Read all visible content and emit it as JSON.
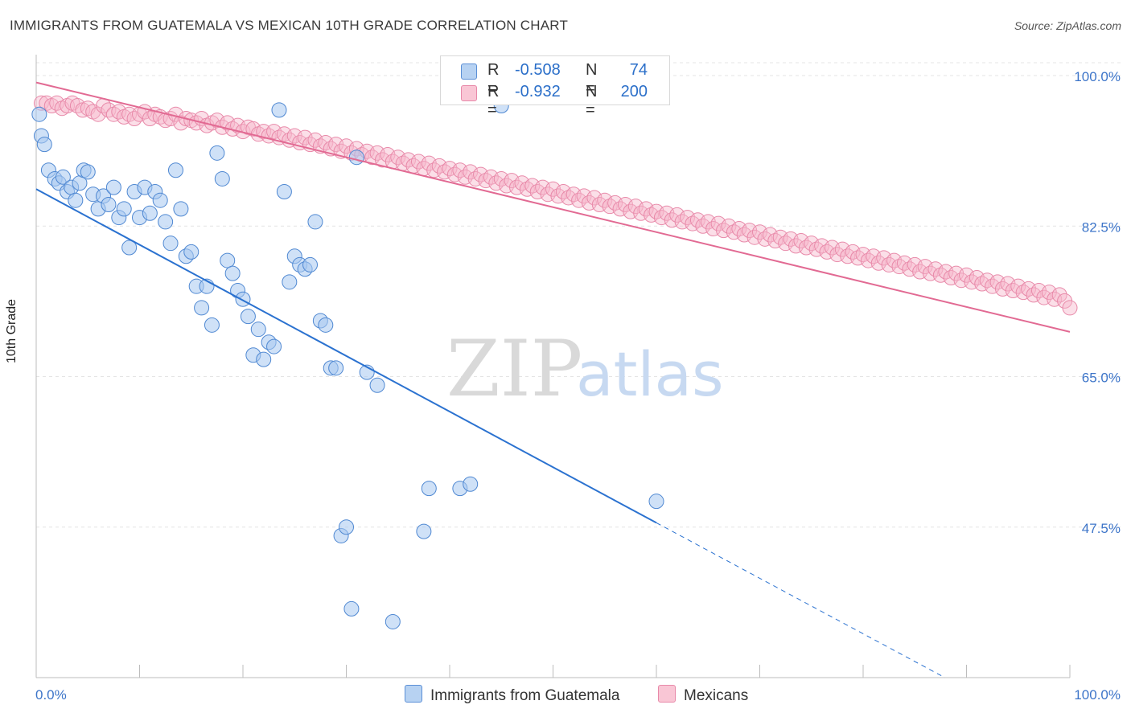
{
  "title": "IMMIGRANTS FROM GUATEMALA VS MEXICAN 10TH GRADE CORRELATION CHART",
  "source": "Source: ZipAtlas.com",
  "watermark": {
    "zip": "ZIP",
    "atlas": "atlas"
  },
  "colors": {
    "blue": "#2b72d0",
    "blue_fill": "#a8c8f0",
    "pink": "#e26a93",
    "pink_fill": "#f7b8cc",
    "axis_label": "#3d75c9",
    "grid": "#e2e2e2"
  },
  "legend_top": {
    "rows": [
      {
        "swatch": "blue",
        "r_label": "R =",
        "r_value": "-0.508",
        "n_label": "N =",
        "n_value": "74"
      },
      {
        "swatch": "pink",
        "r_label": "R =",
        "r_value": "-0.932",
        "n_label": "N =",
        "n_value": "200"
      }
    ]
  },
  "bottom_legend": [
    {
      "swatch": "blue",
      "label": "Immigrants from Guatemala"
    },
    {
      "swatch": "pink",
      "label": "Mexicans"
    }
  ],
  "chart_data": {
    "type": "scatter",
    "title": "IMMIGRANTS FROM GUATEMALA VS MEXICAN 10TH GRADE CORRELATION CHART",
    "xlabel": "",
    "ylabel": "10th Grade",
    "xlim": [
      0,
      100
    ],
    "ylim": [
      30,
      101.5
    ],
    "x_tick_labels": [
      "0.0%",
      "100.0%"
    ],
    "y_ticks": [
      100.0,
      82.5,
      65.0,
      47.5
    ],
    "y_tick_labels": [
      "100.0%",
      "82.5%",
      "65.0%",
      "47.5%"
    ],
    "grid": true,
    "legend_position": "top-center",
    "series": [
      {
        "name": "Immigrants from Guatemala",
        "color": "#2b72d0",
        "R": -0.508,
        "N": 74,
        "trend": {
          "x": [
            0,
            60
          ],
          "y": [
            86.8,
            48.0
          ],
          "dashed_to": [
            100,
            22.2
          ]
        },
        "points": [
          [
            0.3,
            95.5
          ],
          [
            0.5,
            93.0
          ],
          [
            0.8,
            92.0
          ],
          [
            1.2,
            89.0
          ],
          [
            1.8,
            88.0
          ],
          [
            2.2,
            87.5
          ],
          [
            2.6,
            88.2
          ],
          [
            3.0,
            86.5
          ],
          [
            3.4,
            87.0
          ],
          [
            3.8,
            85.5
          ],
          [
            4.2,
            87.5
          ],
          [
            4.6,
            89.0
          ],
          [
            5.0,
            88.8
          ],
          [
            5.5,
            86.2
          ],
          [
            6.0,
            84.5
          ],
          [
            6.5,
            86.0
          ],
          [
            7.0,
            85.0
          ],
          [
            7.5,
            87.0
          ],
          [
            8.0,
            83.5
          ],
          [
            8.5,
            84.5
          ],
          [
            9.0,
            80.0
          ],
          [
            9.5,
            86.5
          ],
          [
            10.0,
            83.5
          ],
          [
            10.5,
            87.0
          ],
          [
            11.0,
            84.0
          ],
          [
            11.5,
            86.5
          ],
          [
            12.0,
            85.5
          ],
          [
            12.5,
            83.0
          ],
          [
            13.0,
            80.5
          ],
          [
            13.5,
            89.0
          ],
          [
            14.0,
            84.5
          ],
          [
            14.5,
            79.0
          ],
          [
            15.0,
            79.5
          ],
          [
            15.5,
            75.5
          ],
          [
            16.0,
            73.0
          ],
          [
            16.5,
            75.5
          ],
          [
            17.0,
            71.0
          ],
          [
            17.5,
            91.0
          ],
          [
            18.0,
            88.0
          ],
          [
            18.5,
            78.5
          ],
          [
            19.0,
            77.0
          ],
          [
            19.5,
            75.0
          ],
          [
            20.0,
            74.0
          ],
          [
            20.5,
            72.0
          ],
          [
            21.0,
            67.5
          ],
          [
            21.5,
            70.5
          ],
          [
            22.0,
            67.0
          ],
          [
            22.5,
            69.0
          ],
          [
            23.0,
            68.5
          ],
          [
            23.5,
            96.0
          ],
          [
            24.0,
            86.5
          ],
          [
            24.5,
            76.0
          ],
          [
            25.0,
            79.0
          ],
          [
            25.5,
            78.0
          ],
          [
            26.0,
            77.5
          ],
          [
            26.5,
            78.0
          ],
          [
            27.0,
            83.0
          ],
          [
            27.5,
            71.5
          ],
          [
            28.0,
            71.0
          ],
          [
            28.5,
            66.0
          ],
          [
            29.0,
            66.0
          ],
          [
            29.5,
            46.5
          ],
          [
            30.0,
            47.5
          ],
          [
            30.5,
            38.0
          ],
          [
            31.0,
            90.5
          ],
          [
            32.0,
            65.5
          ],
          [
            33.0,
            64.0
          ],
          [
            34.5,
            36.5
          ],
          [
            37.5,
            47.0
          ],
          [
            38.0,
            52.0
          ],
          [
            41.0,
            52.0
          ],
          [
            42.0,
            52.5
          ],
          [
            45.0,
            96.5
          ],
          [
            60.0,
            50.5
          ]
        ]
      },
      {
        "name": "Mexicans",
        "color": "#e26a93",
        "R": -0.932,
        "N": 200,
        "trend": {
          "x": [
            0,
            100
          ],
          "y": [
            99.2,
            70.2
          ]
        },
        "points": [
          [
            0.5,
            96.8
          ],
          [
            1.0,
            96.8
          ],
          [
            1.5,
            96.5
          ],
          [
            2.0,
            96.8
          ],
          [
            2.5,
            96.2
          ],
          [
            3.0,
            96.5
          ],
          [
            3.5,
            96.8
          ],
          [
            4.0,
            96.5
          ],
          [
            4.5,
            96.0
          ],
          [
            5.0,
            96.2
          ],
          [
            5.5,
            95.8
          ],
          [
            6.0,
            95.5
          ],
          [
            6.5,
            96.5
          ],
          [
            7.0,
            96.0
          ],
          [
            7.5,
            95.5
          ],
          [
            8.0,
            95.8
          ],
          [
            8.5,
            95.2
          ],
          [
            9.0,
            95.5
          ],
          [
            9.5,
            95.0
          ],
          [
            10.0,
            95.5
          ],
          [
            10.5,
            95.8
          ],
          [
            11.0,
            95.0
          ],
          [
            11.5,
            95.5
          ],
          [
            12.0,
            95.2
          ],
          [
            12.5,
            94.8
          ],
          [
            13.0,
            95.0
          ],
          [
            13.5,
            95.5
          ],
          [
            14.0,
            94.5
          ],
          [
            14.5,
            95.0
          ],
          [
            15.0,
            94.8
          ],
          [
            15.5,
            94.5
          ],
          [
            16.0,
            95.0
          ],
          [
            16.5,
            94.2
          ],
          [
            17.0,
            94.5
          ],
          [
            17.5,
            94.8
          ],
          [
            18.0,
            94.0
          ],
          [
            18.5,
            94.5
          ],
          [
            19.0,
            93.8
          ],
          [
            19.5,
            94.2
          ],
          [
            20.0,
            93.5
          ],
          [
            20.5,
            94.0
          ],
          [
            21.0,
            93.8
          ],
          [
            21.5,
            93.2
          ],
          [
            22.0,
            93.5
          ],
          [
            22.5,
            93.0
          ],
          [
            23.0,
            93.5
          ],
          [
            23.5,
            92.8
          ],
          [
            24.0,
            93.2
          ],
          [
            24.5,
            92.5
          ],
          [
            25.0,
            93.0
          ],
          [
            25.5,
            92.2
          ],
          [
            26.0,
            92.8
          ],
          [
            26.5,
            92.0
          ],
          [
            27.0,
            92.5
          ],
          [
            27.5,
            91.8
          ],
          [
            28.0,
            92.2
          ],
          [
            28.5,
            91.5
          ],
          [
            29.0,
            92.0
          ],
          [
            29.5,
            91.2
          ],
          [
            30.0,
            91.8
          ],
          [
            30.5,
            91.0
          ],
          [
            31.0,
            91.5
          ],
          [
            31.5,
            90.8
          ],
          [
            32.0,
            91.2
          ],
          [
            32.5,
            90.5
          ],
          [
            33.0,
            91.0
          ],
          [
            33.5,
            90.2
          ],
          [
            34.0,
            90.8
          ],
          [
            34.5,
            90.0
          ],
          [
            35.0,
            90.5
          ],
          [
            35.5,
            89.8
          ],
          [
            36.0,
            90.2
          ],
          [
            36.5,
            89.5
          ],
          [
            37.0,
            90.0
          ],
          [
            37.5,
            89.2
          ],
          [
            38.0,
            89.8
          ],
          [
            38.5,
            89.0
          ],
          [
            39.0,
            89.5
          ],
          [
            39.5,
            88.8
          ],
          [
            40.0,
            89.2
          ],
          [
            40.5,
            88.5
          ],
          [
            41.0,
            89.0
          ],
          [
            41.5,
            88.2
          ],
          [
            42.0,
            88.8
          ],
          [
            42.5,
            88.0
          ],
          [
            43.0,
            88.5
          ],
          [
            43.5,
            87.8
          ],
          [
            44.0,
            88.2
          ],
          [
            44.5,
            87.5
          ],
          [
            45.0,
            88.0
          ],
          [
            45.5,
            87.2
          ],
          [
            46.0,
            87.8
          ],
          [
            46.5,
            87.0
          ],
          [
            47.0,
            87.5
          ],
          [
            47.5,
            86.8
          ],
          [
            48.0,
            87.2
          ],
          [
            48.5,
            86.5
          ],
          [
            49.0,
            87.0
          ],
          [
            49.5,
            86.2
          ],
          [
            50.0,
            86.8
          ],
          [
            50.5,
            86.0
          ],
          [
            51.0,
            86.5
          ],
          [
            51.5,
            85.8
          ],
          [
            52.0,
            86.2
          ],
          [
            52.5,
            85.5
          ],
          [
            53.0,
            86.0
          ],
          [
            53.5,
            85.2
          ],
          [
            54.0,
            85.8
          ],
          [
            54.5,
            85.0
          ],
          [
            55.0,
            85.5
          ],
          [
            55.5,
            84.8
          ],
          [
            56.0,
            85.2
          ],
          [
            56.5,
            84.5
          ],
          [
            57.0,
            85.0
          ],
          [
            57.5,
            84.2
          ],
          [
            58.0,
            84.8
          ],
          [
            58.5,
            84.0
          ],
          [
            59.0,
            84.5
          ],
          [
            59.5,
            83.8
          ],
          [
            60.0,
            84.2
          ],
          [
            60.5,
            83.5
          ],
          [
            61.0,
            84.0
          ],
          [
            61.5,
            83.2
          ],
          [
            62.0,
            83.8
          ],
          [
            62.5,
            83.0
          ],
          [
            63.0,
            83.5
          ],
          [
            63.5,
            82.8
          ],
          [
            64.0,
            83.2
          ],
          [
            64.5,
            82.5
          ],
          [
            65.0,
            83.0
          ],
          [
            65.5,
            82.2
          ],
          [
            66.0,
            82.8
          ],
          [
            66.5,
            82.0
          ],
          [
            67.0,
            82.5
          ],
          [
            67.5,
            81.8
          ],
          [
            68.0,
            82.2
          ],
          [
            68.5,
            81.5
          ],
          [
            69.0,
            82.0
          ],
          [
            69.5,
            81.2
          ],
          [
            70.0,
            81.8
          ],
          [
            70.5,
            81.0
          ],
          [
            71.0,
            81.5
          ],
          [
            71.5,
            80.8
          ],
          [
            72.0,
            81.2
          ],
          [
            72.5,
            80.5
          ],
          [
            73.0,
            81.0
          ],
          [
            73.5,
            80.2
          ],
          [
            74.0,
            80.8
          ],
          [
            74.5,
            80.0
          ],
          [
            75.0,
            80.5
          ],
          [
            75.5,
            79.8
          ],
          [
            76.0,
            80.2
          ],
          [
            76.5,
            79.5
          ],
          [
            77.0,
            80.0
          ],
          [
            77.5,
            79.2
          ],
          [
            78.0,
            79.8
          ],
          [
            78.5,
            79.0
          ],
          [
            79.0,
            79.5
          ],
          [
            79.5,
            78.8
          ],
          [
            80.0,
            79.2
          ],
          [
            80.5,
            78.5
          ],
          [
            81.0,
            79.0
          ],
          [
            81.5,
            78.2
          ],
          [
            82.0,
            78.8
          ],
          [
            82.5,
            78.0
          ],
          [
            83.0,
            78.5
          ],
          [
            83.5,
            77.8
          ],
          [
            84.0,
            78.2
          ],
          [
            84.5,
            77.5
          ],
          [
            85.0,
            78.0
          ],
          [
            85.5,
            77.2
          ],
          [
            86.0,
            77.8
          ],
          [
            86.5,
            77.0
          ],
          [
            87.0,
            77.5
          ],
          [
            87.5,
            76.8
          ],
          [
            88.0,
            77.2
          ],
          [
            88.5,
            76.5
          ],
          [
            89.0,
            77.0
          ],
          [
            89.5,
            76.2
          ],
          [
            90.0,
            76.8
          ],
          [
            90.5,
            76.0
          ],
          [
            91.0,
            76.5
          ],
          [
            91.5,
            75.8
          ],
          [
            92.0,
            76.2
          ],
          [
            92.5,
            75.5
          ],
          [
            93.0,
            76.0
          ],
          [
            93.5,
            75.2
          ],
          [
            94.0,
            75.8
          ],
          [
            94.5,
            75.0
          ],
          [
            95.0,
            75.5
          ],
          [
            95.5,
            74.8
          ],
          [
            96.0,
            75.2
          ],
          [
            96.5,
            74.5
          ],
          [
            97.0,
            75.0
          ],
          [
            97.5,
            74.2
          ],
          [
            98.0,
            74.8
          ],
          [
            98.5,
            74.0
          ],
          [
            99.0,
            74.5
          ],
          [
            99.5,
            73.8
          ],
          [
            100.0,
            73.0
          ]
        ]
      }
    ]
  }
}
